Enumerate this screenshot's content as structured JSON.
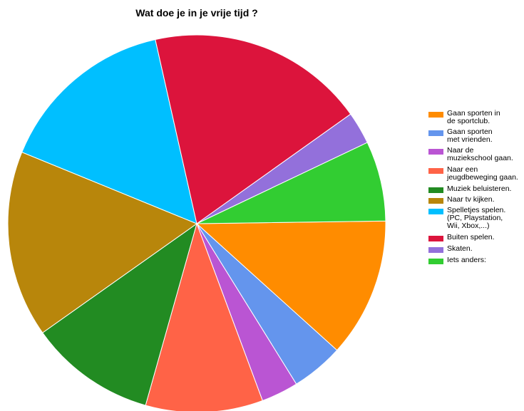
{
  "chart_data": {
    "type": "pie",
    "title": "Wat doe je in je vrije tijd ?",
    "legend_position": "right",
    "slices": [
      {
        "label": "Gaan sporten in de sportclub.",
        "value": 12.0,
        "color": "#ff8c00"
      },
      {
        "label": "Gaan sporten met vrienden.",
        "value": 4.5,
        "color": "#6495ed"
      },
      {
        "label": "Naar de muziekschool gaan.",
        "value": 3.2,
        "color": "#ba55d3"
      },
      {
        "label": "Naar een jeugdbeweging gaan.",
        "value": 10.1,
        "color": "#ff6347"
      },
      {
        "label": "Muziek beluisteren.",
        "value": 10.9,
        "color": "#228b22"
      },
      {
        "label": "Naar tv kijken.",
        "value": 16.1,
        "color": "#b8860b"
      },
      {
        "label": "Spelletjes spelen. (PC, Playstation, Wii, Xbox,...)",
        "value": 15.4,
        "color": "#00bfff"
      },
      {
        "label": "Buiten spelen.",
        "value": 18.8,
        "color": "#dc143c"
      },
      {
        "label": "Skaten.",
        "value": 2.8,
        "color": "#9370db"
      },
      {
        "label": "Iets anders:",
        "value": 6.9,
        "color": "#32cd32"
      }
    ]
  },
  "legend": [
    {
      "lines": [
        "Gaan sporten in",
        "de sportclub."
      ],
      "color": "#ff8c00"
    },
    {
      "lines": [
        "Gaan sporten",
        "met vrienden."
      ],
      "color": "#6495ed"
    },
    {
      "lines": [
        "Naar de",
        "muziekschool gaan."
      ],
      "color": "#ba55d3"
    },
    {
      "lines": [
        "Naar een",
        "jeugdbeweging gaan."
      ],
      "color": "#ff6347"
    },
    {
      "lines": [
        "Muziek beluisteren."
      ],
      "color": "#228b22"
    },
    {
      "lines": [
        "Naar tv kijken."
      ],
      "color": "#b8860b"
    },
    {
      "lines": [
        "Spelletjes spelen.",
        "(PC, Playstation,",
        "Wii, Xbox,...)"
      ],
      "color": "#00bfff"
    },
    {
      "lines": [
        "Buiten spelen."
      ],
      "color": "#dc143c"
    },
    {
      "lines": [
        "Skaten."
      ],
      "color": "#9370db"
    },
    {
      "lines": [
        "Iets anders:"
      ],
      "color": "#32cd32"
    }
  ]
}
